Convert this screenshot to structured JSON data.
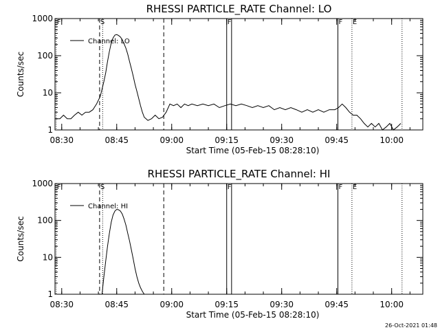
{
  "chart_data": [
    {
      "type": "line",
      "title": "RHESSI PARTICLE_RATE Channel: LO",
      "xlabel": "Start Time (05-Feb-15 08:28:10)",
      "ylabel": "Counts/sec",
      "yscale": "log",
      "ylim": [
        1,
        1000
      ],
      "xlim": [
        "08:28:10",
        "10:08:30"
      ],
      "x_ticks": [
        "08:30",
        "08:45",
        "09:00",
        "09:15",
        "09:30",
        "09:45",
        "10:00"
      ],
      "y_ticks": [
        "1",
        "10",
        "100",
        "1000"
      ],
      "legend": "top-left",
      "markers": [
        {
          "label": "F",
          "time": "08:28:30",
          "style": "dotted"
        },
        {
          "label": "S",
          "time": "08:40:20",
          "style": "dashed"
        },
        {
          "label": "",
          "time": "08:41:10",
          "style": "dotted"
        },
        {
          "label": "",
          "time": "08:57:50",
          "style": "dashed"
        },
        {
          "label": "F",
          "time": "09:15:00",
          "style": "solid"
        },
        {
          "label": "",
          "time": "09:16:20",
          "style": "solid"
        },
        {
          "label": "F",
          "time": "09:45:20",
          "style": "solid"
        },
        {
          "label": "E",
          "time": "09:49:10",
          "style": "dotted"
        },
        {
          "label": "",
          "time": "10:02:50",
          "style": "dotted"
        }
      ],
      "series": [
        {
          "name": "Channel: LO",
          "x": [
            "08:28:30",
            "08:29:30",
            "08:30:30",
            "08:31:30",
            "08:32:30",
            "08:33:30",
            "08:34:30",
            "08:35:30",
            "08:36:30",
            "08:37:30",
            "08:38:30",
            "08:39:30",
            "08:40:30",
            "08:41:30",
            "08:42:00",
            "08:42:30",
            "08:43:00",
            "08:43:30",
            "08:44:00",
            "08:44:30",
            "08:45:00",
            "08:45:30",
            "08:46:00",
            "08:46:30",
            "08:47:00",
            "08:47:30",
            "08:48:00",
            "08:48:30",
            "08:49:00",
            "08:49:30",
            "08:50:00",
            "08:50:30",
            "08:51:00",
            "08:51:30",
            "08:52:00",
            "08:52:30",
            "08:53:00",
            "08:53:30",
            "08:54:30",
            "08:55:30",
            "08:56:30",
            "08:57:30",
            "08:58:30",
            "08:59:30",
            "09:00:30",
            "09:01:30",
            "09:02:30",
            "09:03:30",
            "09:04:30",
            "09:05:30",
            "09:07:00",
            "09:08:30",
            "09:10:00",
            "09:11:30",
            "09:13:00",
            "09:14:30",
            "09:16:00",
            "09:17:30",
            "09:19:00",
            "09:20:30",
            "09:22:00",
            "09:23:30",
            "09:25:00",
            "09:26:30",
            "09:28:00",
            "09:29:30",
            "09:31:00",
            "09:32:30",
            "09:34:00",
            "09:35:30",
            "09:37:00",
            "09:38:30",
            "09:40:00",
            "09:41:30",
            "09:43:00",
            "09:44:30",
            "09:45:30",
            "09:46:30",
            "09:47:30",
            "09:48:30",
            "09:49:30",
            "09:50:30",
            "09:51:30",
            "09:52:30",
            "09:53:30",
            "09:54:30",
            "09:55:30",
            "09:56:30",
            "09:57:30",
            "09:58:30",
            "09:59:30",
            "10:00:30",
            "10:01:30",
            "10:02:30"
          ],
          "values": [
            2,
            2,
            2.5,
            2,
            2,
            2.5,
            3,
            2.5,
            3,
            3,
            3.5,
            5,
            8,
            20,
            35,
            70,
            130,
            220,
            300,
            360,
            370,
            350,
            320,
            270,
            210,
            160,
            110,
            70,
            45,
            28,
            17,
            11,
            7,
            4.5,
            3,
            2.2,
            2,
            1.8,
            2,
            2.5,
            2,
            2.2,
            3,
            5,
            4.5,
            5,
            4,
            5,
            4.5,
            5,
            4.5,
            5,
            4.5,
            5,
            4,
            4.5,
            5,
            4.5,
            5,
            4.5,
            4,
            4.5,
            4,
            4.5,
            3.5,
            4,
            3.5,
            4,
            3.5,
            3,
            3.5,
            3,
            3.5,
            3,
            3.5,
            3.5,
            4,
            5,
            4,
            3,
            2.5,
            2.5,
            2,
            1.5,
            1.2,
            1.5,
            1.2,
            1.5,
            1,
            1.2,
            1.5,
            1,
            1.2,
            1.5
          ]
        }
      ]
    },
    {
      "type": "line",
      "title": "RHESSI PARTICLE_RATE Channel: HI",
      "xlabel": "Start Time (05-Feb-15 08:28:10)",
      "ylabel": "Counts/sec",
      "yscale": "log",
      "ylim": [
        1,
        1000
      ],
      "xlim": [
        "08:28:10",
        "10:08:30"
      ],
      "x_ticks": [
        "08:30",
        "08:45",
        "09:00",
        "09:15",
        "09:30",
        "09:45",
        "10:00"
      ],
      "y_ticks": [
        "1",
        "10",
        "100",
        "1000"
      ],
      "legend": "top-left",
      "markers": [
        {
          "label": "F",
          "time": "08:28:30",
          "style": "dotted"
        },
        {
          "label": "S",
          "time": "08:40:20",
          "style": "dashed"
        },
        {
          "label": "",
          "time": "08:41:10",
          "style": "dotted"
        },
        {
          "label": "",
          "time": "08:57:50",
          "style": "dashed"
        },
        {
          "label": "F",
          "time": "09:15:00",
          "style": "solid"
        },
        {
          "label": "",
          "time": "09:16:20",
          "style": "solid"
        },
        {
          "label": "F",
          "time": "09:45:20",
          "style": "solid"
        },
        {
          "label": "E",
          "time": "09:49:10",
          "style": "dotted"
        },
        {
          "label": "",
          "time": "10:02:50",
          "style": "dotted"
        }
      ],
      "series": [
        {
          "name": "Channel: HI",
          "x": [
            "08:41:00",
            "08:41:30",
            "08:42:00",
            "08:42:30",
            "08:43:00",
            "08:43:30",
            "08:44:00",
            "08:44:30",
            "08:45:00",
            "08:45:30",
            "08:46:00",
            "08:46:30",
            "08:47:00",
            "08:47:30",
            "08:48:00",
            "08:48:30",
            "08:49:00",
            "08:49:30",
            "08:50:00",
            "08:50:30",
            "08:51:00",
            "08:51:30",
            "08:52:00",
            "08:52:30",
            "08:53:00",
            "08:53:30"
          ],
          "values": [
            1,
            3,
            8,
            20,
            45,
            90,
            140,
            180,
            200,
            195,
            180,
            150,
            110,
            75,
            45,
            28,
            16,
            9,
            5,
            3,
            2,
            1.5,
            1.2,
            1,
            1,
            1
          ]
        }
      ]
    }
  ],
  "timestamp": "26-Oct-2021 01:48"
}
